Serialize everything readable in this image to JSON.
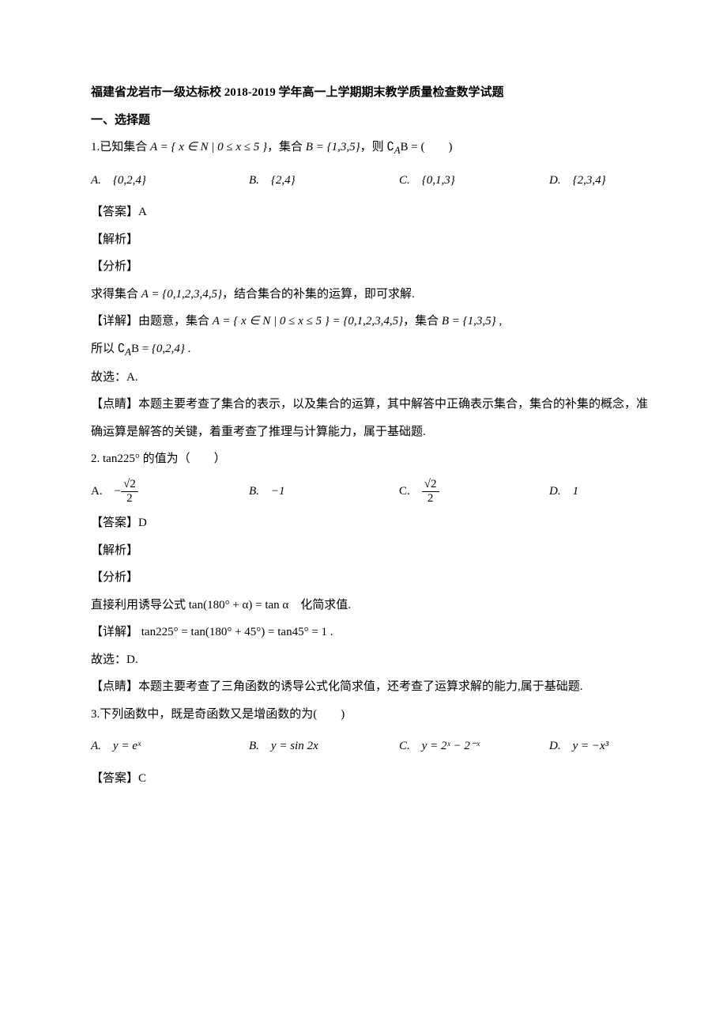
{
  "title": "福建省龙岩市一级达标校 2018-2019 学年高一上学期期末教学质量检查数学试题",
  "section1": "一、选择题",
  "q1": {
    "stem_pre": "1.已知集合 ",
    "stem_A": "A = { x ∈ N | 0 ≤ x ≤ 5 }",
    "stem_mid": "，集合 ",
    "stem_B": "B = {1,3,5}",
    "stem_post": "，则 ∁",
    "stem_sub": "A",
    "stem_end": "B = (　　)",
    "optA": "A.　{0,2,4}",
    "optB": "B.　{2,4}",
    "optC": "C.　{0,1,3}",
    "optD": "D.　{2,3,4}",
    "ans": "【答案】A",
    "jiexi": "【解析】",
    "fenxi": "【分析】",
    "fenxi_text_pre": "求得集合 ",
    "fenxi_text_A": "A = {0,1,2,3,4,5}",
    "fenxi_text_post": "，结合集合的补集的运算，即可求解.",
    "detail_pre": "【详解】由题意，集合 ",
    "detail_A": "A = { x ∈ N | 0 ≤ x ≤ 5 } = {0,1,2,3,4,5}",
    "detail_mid": "，集合 ",
    "detail_B": "B = {1,3,5}",
    "detail_post": " ,",
    "so_pre": "所以 ∁",
    "so_sub": "A",
    "so_mid": "B = ",
    "so_set": "{0,2,4}",
    "so_post": " .",
    "guxuan": "故选：A.",
    "dianjing": "【点睛】本题主要考查了集合的表示，以及集合的运算，其中解答中正确表示集合，集合的补集的概念，准确运算是解答的关键，着重考查了推理与计算能力，属于基础题."
  },
  "q2": {
    "stem": "2. tan225° 的值为（　　）",
    "optA_pre": "A.　",
    "optA_num": "√2",
    "optA_den": "2",
    "optB": "B.　−1",
    "optC_pre": "C.　",
    "optC_num": "√2",
    "optC_den": "2",
    "optD": "D.　1",
    "ans": "【答案】D",
    "jiexi": "【解析】",
    "fenxi": "【分析】",
    "fenxi_text": "直接利用诱导公式 tan(180° + α) = tan α　化简求值.",
    "detail": "【详解】 tan225° = tan(180° + 45°) = tan45° = 1 .",
    "guxuan": "故选：D.",
    "dianjing": "【点睛】本题主要考查了三角函数的诱导公式化简求值，还考查了运算求解的能力,属于基础题."
  },
  "q3": {
    "stem": "3.下列函数中，既是奇函数又是增函数的为(　　)",
    "optA": "A.　y = eˣ",
    "optB": "B.　y = sin 2x",
    "optC": "C.　y = 2ˣ − 2⁻ˣ",
    "optD": "D.　y = −x³",
    "ans": "【答案】C"
  }
}
